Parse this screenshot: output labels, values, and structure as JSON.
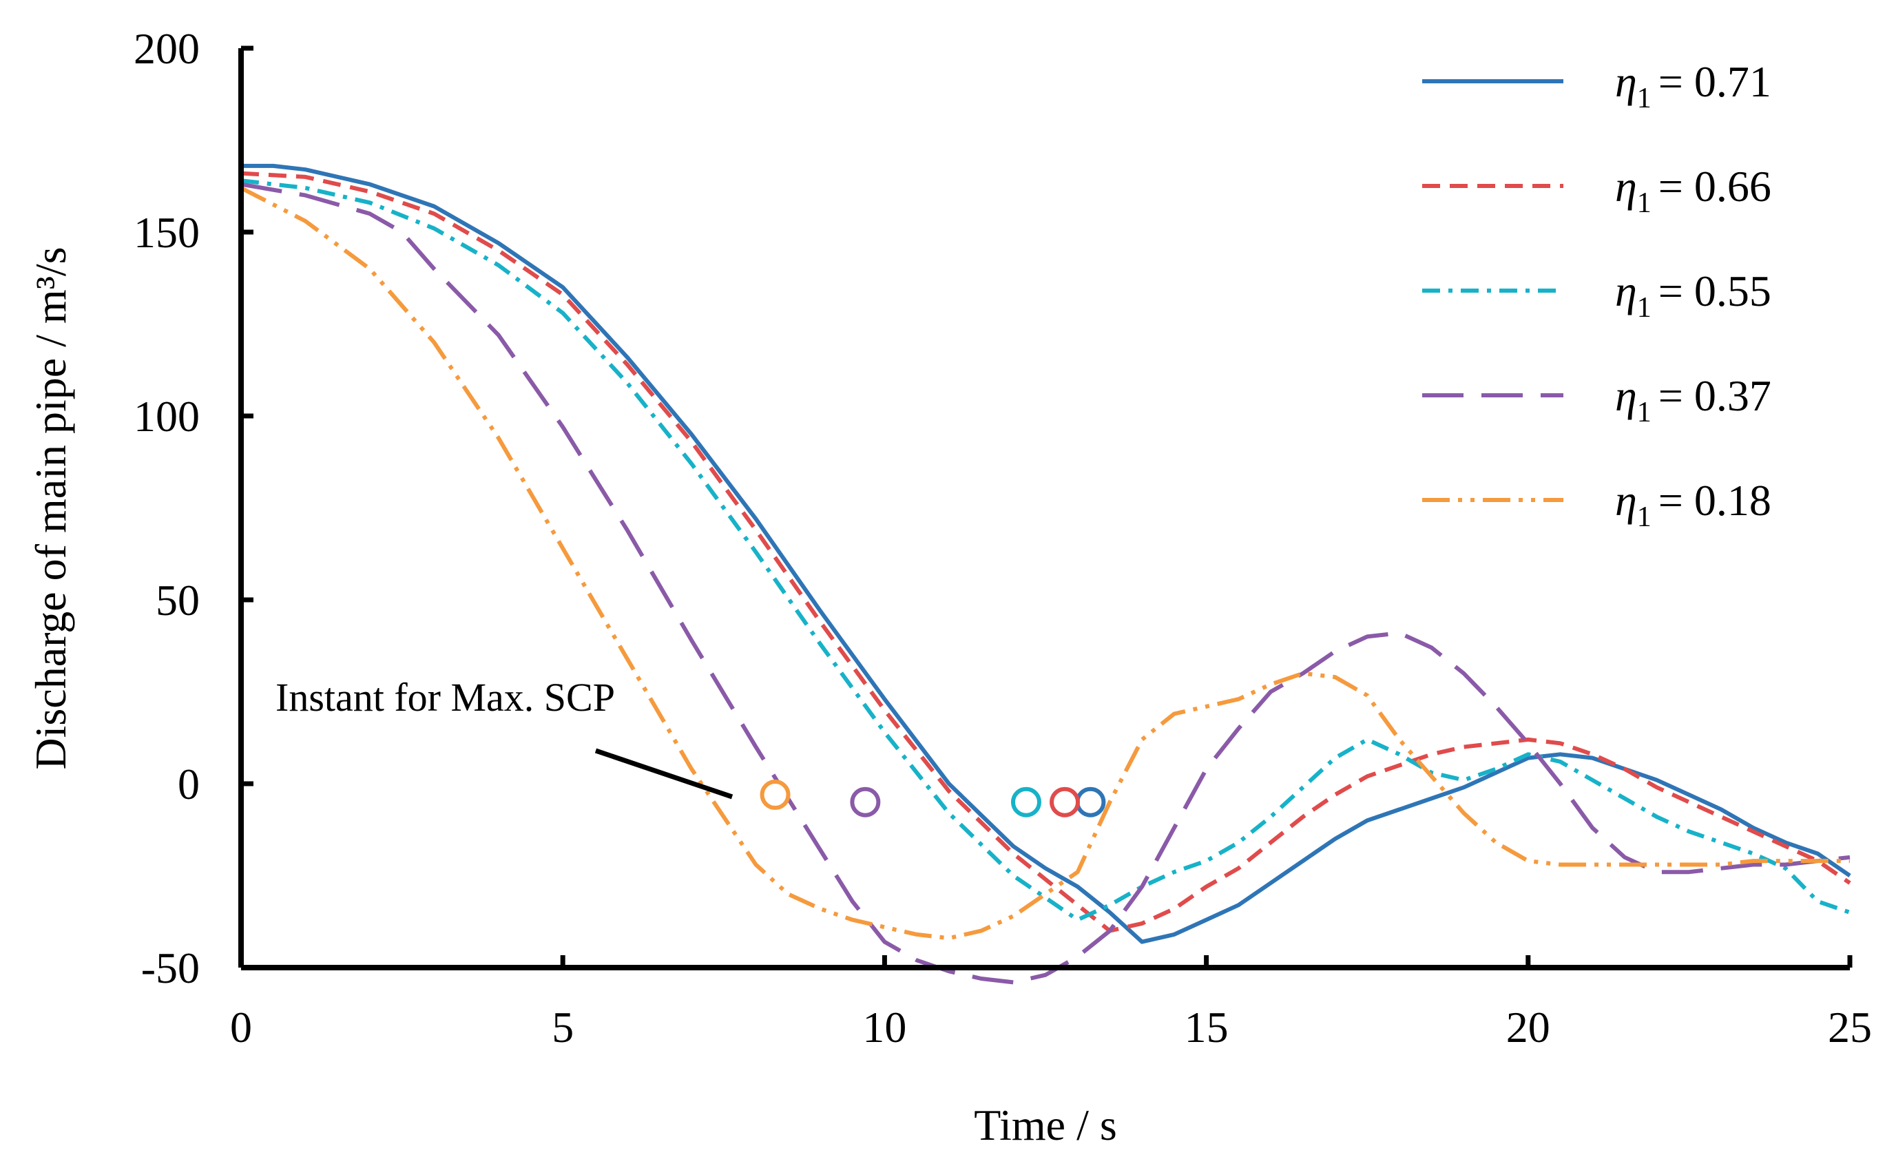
{
  "chart_data": {
    "type": "line",
    "title": "",
    "xlabel": "Time / s",
    "ylabel": "Discharge of main pipe / m³/s",
    "xlim": [
      0,
      25
    ],
    "ylim": [
      -50,
      200
    ],
    "xticks": [
      0,
      5,
      10,
      15,
      20,
      25
    ],
    "yticks": [
      -50,
      0,
      50,
      100,
      150,
      200
    ],
    "grid": false,
    "legend_position": "top-right",
    "annotation": "Instant for Max. SCP",
    "series": [
      {
        "name": "η1 = 0.71",
        "legend_symbol": "η",
        "legend_subscript": "1",
        "legend_value": "= 0.71",
        "color": "#2e75b6",
        "dash": "solid",
        "x": [
          0,
          0.5,
          1,
          2,
          3,
          4,
          5,
          6,
          7,
          8,
          9,
          10,
          11,
          12,
          12.5,
          13,
          13.5,
          14,
          14.5,
          15,
          15.5,
          16,
          16.5,
          17,
          17.5,
          18,
          18.5,
          19,
          19.5,
          20,
          20.5,
          21,
          21.5,
          22,
          22.5,
          23,
          23.5,
          24,
          24.5,
          25
        ],
        "y": [
          168,
          168,
          167,
          163,
          157,
          147,
          135,
          116,
          95,
          72,
          47,
          23,
          0,
          -17,
          -23,
          -28,
          -35,
          -43,
          -41,
          -37,
          -33,
          -27,
          -21,
          -15,
          -10,
          -7,
          -4,
          -1,
          3,
          7,
          8,
          7,
          4,
          1,
          -3,
          -7,
          -12,
          -16,
          -19,
          -25
        ],
        "marker": {
          "x": 13.2,
          "y": -5
        }
      },
      {
        "name": "η1 = 0.66",
        "legend_symbol": "η",
        "legend_subscript": "1",
        "legend_value": "= 0.66",
        "color": "#e04b4b",
        "dash": "dashed",
        "x": [
          0,
          1,
          2,
          3,
          4,
          5,
          6,
          7,
          8,
          9,
          10,
          11,
          12,
          12.5,
          13,
          13.5,
          14,
          14.5,
          15,
          15.5,
          16,
          16.5,
          17,
          17.5,
          18,
          18.5,
          19,
          19.5,
          20,
          20.5,
          21,
          21.5,
          22,
          22.5,
          23,
          23.5,
          24,
          24.5,
          25
        ],
        "y": [
          166,
          165,
          161,
          155,
          145,
          133,
          114,
          93,
          69,
          44,
          20,
          -2,
          -19,
          -26,
          -33,
          -40,
          -38,
          -34,
          -28,
          -23,
          -16,
          -9,
          -3,
          2,
          5,
          8,
          10,
          11,
          12,
          11,
          8,
          4,
          -1,
          -5,
          -9,
          -13,
          -17,
          -21,
          -27
        ],
        "marker": {
          "x": 12.8,
          "y": -5
        }
      },
      {
        "name": "η1 = 0.55",
        "legend_symbol": "η",
        "legend_subscript": "1",
        "legend_value": "= 0.55",
        "color": "#17b2c8",
        "dash": "dashdot",
        "x": [
          0,
          1,
          2,
          3,
          4,
          5,
          6,
          7,
          8,
          9,
          10,
          11,
          12,
          12.5,
          13,
          13.5,
          14,
          14.5,
          15,
          15.5,
          16,
          16.5,
          17,
          17.5,
          18,
          18.5,
          19,
          19.5,
          20,
          20.5,
          21,
          21.5,
          22,
          22.5,
          23,
          23.5,
          24,
          24.5,
          25
        ],
        "y": [
          164,
          162,
          158,
          151,
          141,
          128,
          109,
          87,
          63,
          38,
          14,
          -8,
          -25,
          -31,
          -37,
          -33,
          -28,
          -24,
          -21,
          -16,
          -9,
          -1,
          7,
          12,
          8,
          3,
          1,
          4,
          8,
          6,
          1,
          -4,
          -9,
          -13,
          -16,
          -19,
          -23,
          -32,
          -35
        ],
        "marker": {
          "x": 12.2,
          "y": -5
        }
      },
      {
        "name": "η1 = 0.37",
        "legend_symbol": "η",
        "legend_subscript": "1",
        "legend_value": "= 0.37",
        "color": "#8a5aa8",
        "dash": "longdash",
        "x": [
          0,
          1,
          2,
          2.5,
          3,
          4,
          5,
          6,
          7,
          8,
          9,
          9.5,
          10,
          10.5,
          11,
          11.5,
          12,
          12.5,
          13,
          13.5,
          14,
          14.5,
          15,
          15.5,
          16,
          16.5,
          17,
          17.5,
          18,
          18.5,
          19,
          19.5,
          20,
          20.5,
          21,
          21.5,
          22,
          22.5,
          23,
          23.5,
          24,
          24.5,
          25
        ],
        "y": [
          163,
          160,
          155,
          150,
          140,
          122,
          97,
          69,
          39,
          10,
          -18,
          -32,
          -43,
          -48,
          -51,
          -53,
          -54,
          -52,
          -47,
          -40,
          -28,
          -12,
          4,
          15,
          25,
          30,
          36,
          40,
          41,
          37,
          30,
          21,
          11,
          0,
          -12,
          -20,
          -24,
          -24,
          -23,
          -22,
          -22,
          -21,
          -20
        ],
        "marker": {
          "x": 9.7,
          "y": -5
        }
      },
      {
        "name": "η1 = 0.18",
        "legend_symbol": "η",
        "legend_subscript": "1",
        "legend_value": "= 0.18",
        "color": "#f59a3d",
        "dash": "dashdotdot",
        "x": [
          0,
          1,
          2,
          3,
          4,
          5,
          6,
          7,
          8,
          8.5,
          9,
          9.5,
          10,
          10.5,
          11,
          11.5,
          12,
          12.5,
          13,
          13.5,
          14,
          14.5,
          15,
          15.5,
          16,
          16.5,
          17,
          17.5,
          18,
          18.5,
          19,
          19.5,
          20,
          20.5,
          21,
          21.5,
          22,
          22.5,
          23,
          23.5,
          24,
          24.5,
          25
        ],
        "y": [
          162,
          153,
          140,
          120,
          94,
          64,
          34,
          4,
          -22,
          -30,
          -34,
          -37,
          -39,
          -41,
          -42,
          -40,
          -36,
          -30,
          -24,
          -5,
          12,
          19,
          21,
          23,
          27,
          30,
          29,
          24,
          12,
          2,
          -8,
          -16,
          -21,
          -22,
          -22,
          -22,
          -22,
          -22,
          -22,
          -21,
          -21,
          -21,
          -21
        ],
        "marker": {
          "x": 8.3,
          "y": -3
        }
      }
    ]
  }
}
